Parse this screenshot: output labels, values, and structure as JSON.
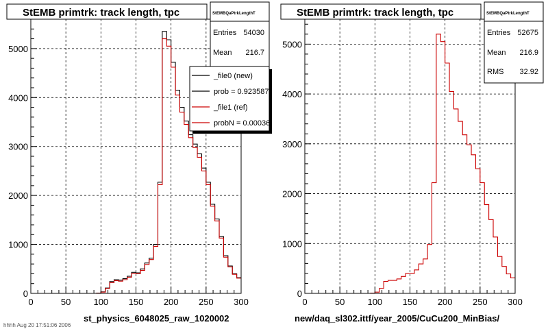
{
  "footer": "hhhh Aug 20 17:51:06 2006",
  "chart_data": [
    {
      "type": "histogram",
      "title": "StEMB primtrk: track length, tpc",
      "xlabel": "st_physics_6048025_raw_1020002",
      "xlim": [
        0,
        300
      ],
      "ylim": [
        0,
        5600
      ],
      "xticks": [
        0,
        50,
        100,
        150,
        200,
        250,
        300
      ],
      "yticks": [
        0,
        1000,
        2000,
        3000,
        4000,
        5000
      ],
      "grid": true,
      "bin_width": 6.25,
      "stats": {
        "name": "StEMBQaPtrkLengthT",
        "rows": [
          {
            "label": "Entries",
            "value": "54030"
          },
          {
            "label": "Mean",
            "value": "216.7"
          }
        ]
      },
      "legend": {
        "position": "top-right",
        "entries": [
          {
            "label": "_file0 (new)",
            "color": "#000000"
          },
          {
            "label": "prob = 0.923587",
            "color": "#000000"
          },
          {
            "label": "_file1 (ref)",
            "color": "#cc0000"
          },
          {
            "label": "probN = 0.00036",
            "color": "#cc0000"
          }
        ]
      },
      "series": [
        {
          "color": "#000000",
          "values": [
            0,
            0,
            0,
            0,
            0,
            0,
            0,
            0,
            0,
            0,
            0,
            0,
            0,
            0,
            0,
            5,
            30,
            110,
            240,
            280,
            270,
            300,
            350,
            430,
            420,
            500,
            620,
            720,
            1000,
            2270,
            5350,
            5180,
            4720,
            4150,
            3800,
            3520,
            3240,
            3050,
            2850,
            2560,
            2270,
            1820,
            1520,
            1160,
            770,
            560,
            400,
            320
          ]
        },
        {
          "color": "#cc0000",
          "values": [
            0,
            0,
            0,
            0,
            0,
            0,
            0,
            0,
            0,
            0,
            0,
            0,
            0,
            0,
            0,
            5,
            25,
            100,
            220,
            260,
            250,
            280,
            330,
            400,
            400,
            470,
            590,
            690,
            960,
            2220,
            5200,
            5050,
            4620,
            4050,
            3700,
            3450,
            3180,
            2980,
            2780,
            2500,
            2220,
            1780,
            1480,
            1130,
            740,
            540,
            390,
            310
          ]
        }
      ]
    },
    {
      "type": "histogram",
      "title": "StEMB primtrk: track length, tpc",
      "xlabel": "new/daq_sl302.ittf/year_2005/CuCu200_MinBias/",
      "xlim": [
        0,
        300
      ],
      "ylim": [
        0,
        5500
      ],
      "xticks": [
        0,
        50,
        100,
        150,
        200,
        250,
        300
      ],
      "yticks": [
        0,
        1000,
        2000,
        3000,
        4000,
        5000
      ],
      "grid": true,
      "bin_width": 6.25,
      "stats": {
        "name": "StEMBQaPtrkLengthT",
        "rows": [
          {
            "label": "Entries",
            "value": "52675"
          },
          {
            "label": "Mean",
            "value": "216.9"
          },
          {
            "label": "RMS",
            "value": "32.92"
          }
        ]
      },
      "series": [
        {
          "color": "#cc0000",
          "values": [
            0,
            0,
            0,
            0,
            0,
            0,
            0,
            0,
            0,
            0,
            0,
            0,
            0,
            0,
            0,
            5,
            25,
            100,
            240,
            260,
            260,
            290,
            340,
            400,
            400,
            470,
            590,
            690,
            980,
            2220,
            5200,
            5050,
            4620,
            4050,
            3700,
            3450,
            3180,
            2980,
            2780,
            2500,
            2220,
            1780,
            1480,
            1130,
            740,
            540,
            390,
            310
          ]
        }
      ]
    }
  ]
}
